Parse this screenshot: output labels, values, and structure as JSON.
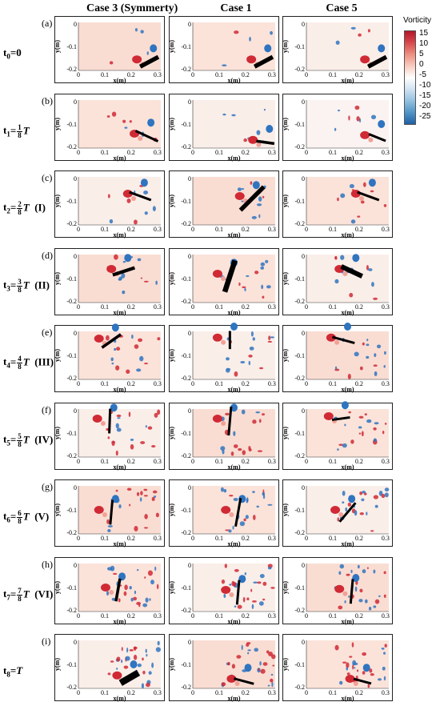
{
  "columns": [
    "Case 3 (Symmerty)",
    "Case 1",
    "Case 5"
  ],
  "colorbar": {
    "title": "Vorticity",
    "ticks": [
      "15",
      "10",
      "5",
      "0",
      "-5",
      "-10",
      "-15",
      "-20",
      "-25"
    ],
    "colors": {
      "max": "#b3172a",
      "zero": "#ffffff",
      "min": "#1f5fa5"
    }
  },
  "axes": {
    "xlabel": "x(m)",
    "ylabel": "y(m)",
    "xticks": [
      "0",
      "0.1",
      "0.2",
      "0.3"
    ],
    "yticks": [
      "0",
      "-0.1",
      "-0.2"
    ]
  },
  "rows": [
    {
      "tag": "(a)",
      "base": "t",
      "sub": "0",
      "eq": "=0",
      "num": "",
      "den": "",
      "T": "",
      "phase": ""
    },
    {
      "tag": "(b)",
      "base": "t",
      "sub": "1",
      "eq": "=",
      "num": "1",
      "den": "8",
      "T": "T",
      "phase": ""
    },
    {
      "tag": "(c)",
      "base": "t",
      "sub": "2",
      "eq": "=",
      "num": "2",
      "den": "8",
      "T": "T",
      "phase": "(I)"
    },
    {
      "tag": "(d)",
      "base": "t",
      "sub": "3",
      "eq": "=",
      "num": "3",
      "den": "8",
      "T": "T",
      "phase": "(II)"
    },
    {
      "tag": "(e)",
      "base": "t",
      "sub": "4",
      "eq": "=",
      "num": "4",
      "den": "8",
      "T": "T",
      "phase": "(III)"
    },
    {
      "tag": "(f)",
      "base": "t",
      "sub": "5",
      "eq": "=",
      "num": "5",
      "den": "8",
      "T": "T",
      "phase": "(IV)"
    },
    {
      "tag": "(g)",
      "base": "t",
      "sub": "6",
      "eq": "=",
      "num": "6",
      "den": "8",
      "T": "T",
      "phase": "(V)"
    },
    {
      "tag": "(h)",
      "base": "t",
      "sub": "7",
      "eq": "=",
      "num": "7",
      "den": "8",
      "T": "T",
      "phase": "(VI)"
    },
    {
      "tag": "(i)",
      "base": "t",
      "sub": "8",
      "eq": "=",
      "num": "",
      "den": "",
      "T": "T",
      "phase": ""
    }
  ]
}
